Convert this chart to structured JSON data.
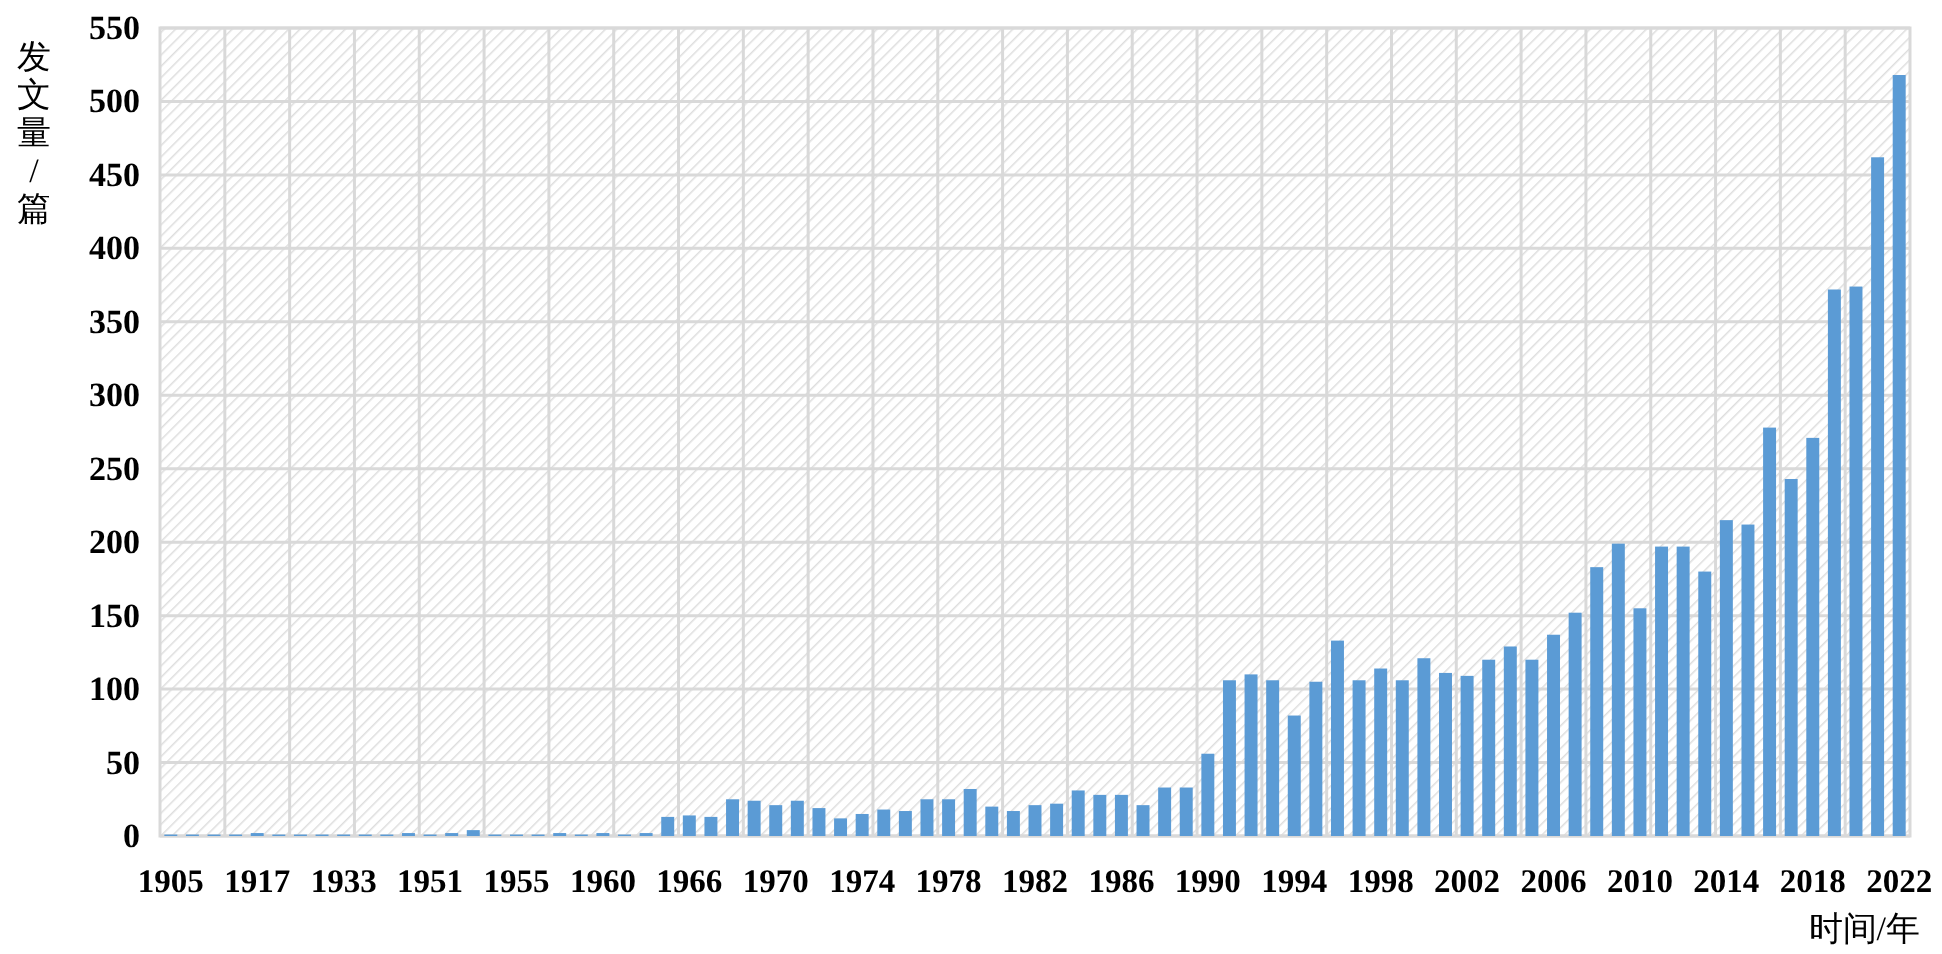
{
  "chart_data": {
    "type": "bar",
    "ylabel": "发文量/篇",
    "xlabel": "时间/年",
    "color": "#5b9bd5",
    "grid": true,
    "ylim": [
      0,
      550
    ],
    "yticks": [
      0,
      50,
      100,
      150,
      200,
      250,
      300,
      350,
      400,
      450,
      500,
      550
    ],
    "categories": [
      "1905",
      null,
      null,
      null,
      "1917",
      null,
      null,
      null,
      "1933",
      null,
      null,
      null,
      "1951",
      null,
      null,
      null,
      "1955",
      null,
      null,
      null,
      "1960",
      null,
      null,
      null,
      "1966",
      null,
      null,
      null,
      "1970",
      null,
      null,
      null,
      "1974",
      null,
      null,
      null,
      "1978",
      null,
      null,
      null,
      "1982",
      null,
      null,
      null,
      "1986",
      null,
      null,
      null,
      "1990",
      null,
      null,
      null,
      "1994",
      null,
      null,
      null,
      "1998",
      null,
      null,
      null,
      "2002",
      null,
      null,
      null,
      "2006",
      null,
      null,
      null,
      "2010",
      null,
      null,
      null,
      "2014",
      null,
      null,
      null,
      "2018",
      null,
      null,
      null,
      "2022"
    ],
    "values": [
      1,
      1,
      1,
      1,
      2,
      1,
      1,
      1,
      1,
      1,
      1,
      2,
      1,
      2,
      4,
      1,
      1,
      1,
      2,
      1,
      2,
      1,
      2,
      13,
      14,
      13,
      25,
      24,
      21,
      24,
      19,
      12,
      15,
      18,
      17,
      25,
      25,
      32,
      20,
      17,
      21,
      22,
      31,
      28,
      28,
      21,
      33,
      33,
      56,
      106,
      110,
      106,
      82,
      105,
      133,
      106,
      114,
      106,
      121,
      111,
      109,
      120,
      129,
      120,
      137,
      152,
      183,
      199,
      155,
      197,
      197,
      180,
      215,
      212,
      278,
      243,
      271,
      372,
      374,
      462,
      518
    ]
  }
}
